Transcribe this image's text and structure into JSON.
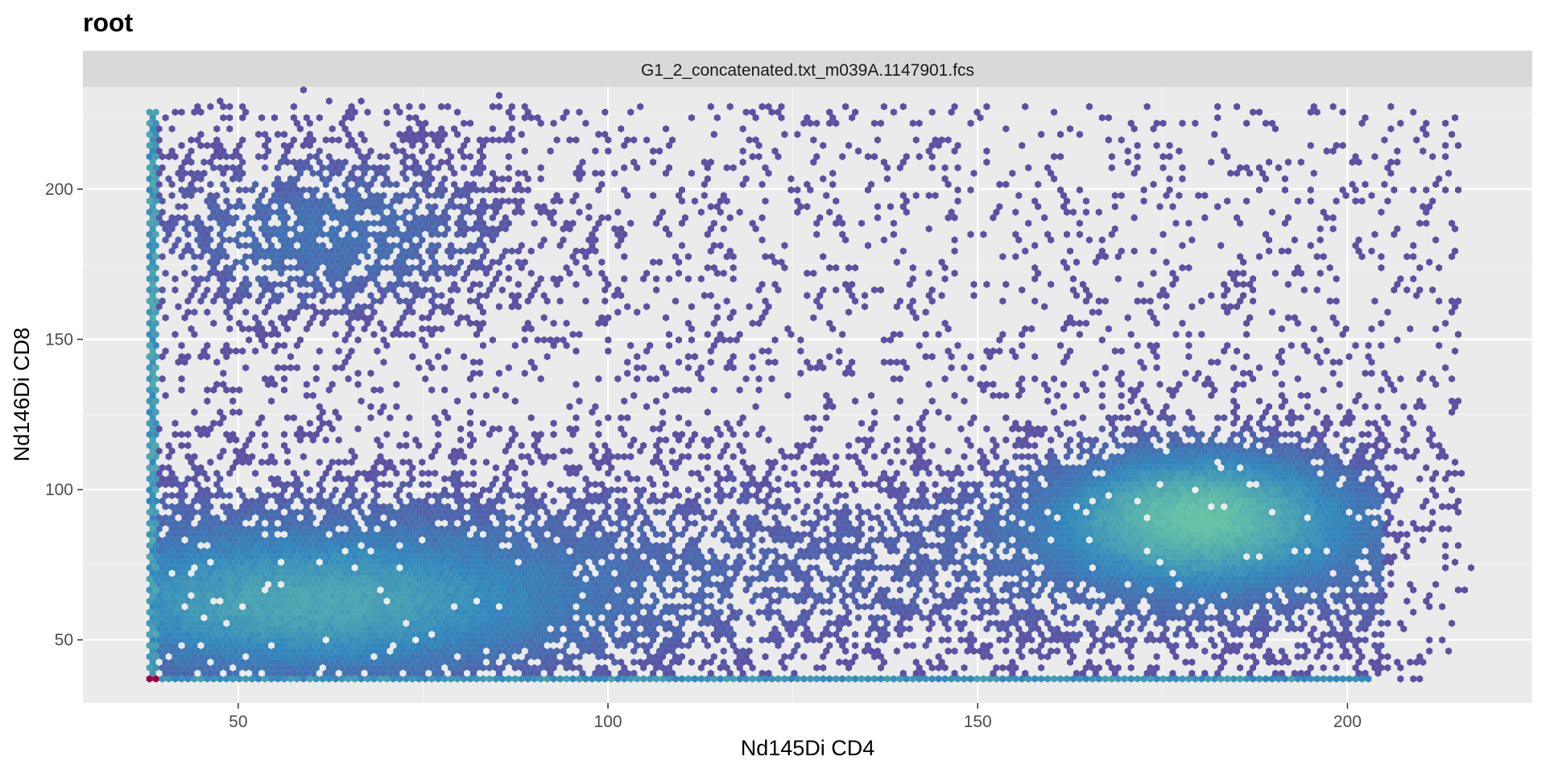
{
  "chart_data": {
    "type": "heatmap",
    "subtype": "hexbin",
    "title": "root",
    "facet_label": "G1_2_concatenated.txt_m039A.1147901.fcs",
    "xlabel": "Nd145Di CD4",
    "ylabel": "Nd146Di CD8",
    "xlim": [
      29,
      225
    ],
    "ylim": [
      29,
      234
    ],
    "x_ticks": [
      50,
      100,
      150,
      200
    ],
    "y_ticks": [
      50,
      100,
      150,
      200
    ],
    "grid": true,
    "legend": "none",
    "colors": {
      "panel_background": "#ebebeb",
      "strip_background": "#d9d9d9",
      "grid_major": "#ffffff",
      "grid_minor": "#f5f5f5",
      "low_density": "#5e4fa2",
      "mid_density": "#3288bd",
      "high_density": "#66c2a5",
      "peak_density": "#9e0142"
    },
    "density_regions": [
      {
        "name": "CD4-CD8+ population",
        "x_center": 62,
        "y_center": 185,
        "x_spread": 18,
        "y_spread": 20,
        "relative_density": 0.45
      },
      {
        "name": "CD4+CD8- population",
        "x_center": 180,
        "y_center": 92,
        "x_spread": 14,
        "y_spread": 16,
        "relative_density": 1.0
      },
      {
        "name": "double negative population",
        "x_center": 60,
        "y_center": 60,
        "x_spread": 25,
        "y_spread": 18,
        "relative_density": 0.7
      },
      {
        "name": "baseline floor row",
        "x_min": 38,
        "x_max": 203,
        "y": 37,
        "relative_density": 0.9
      },
      {
        "name": "baseline left column",
        "x": 38,
        "y_min": 37,
        "y_max": 226,
        "relative_density": 0.9
      }
    ]
  }
}
